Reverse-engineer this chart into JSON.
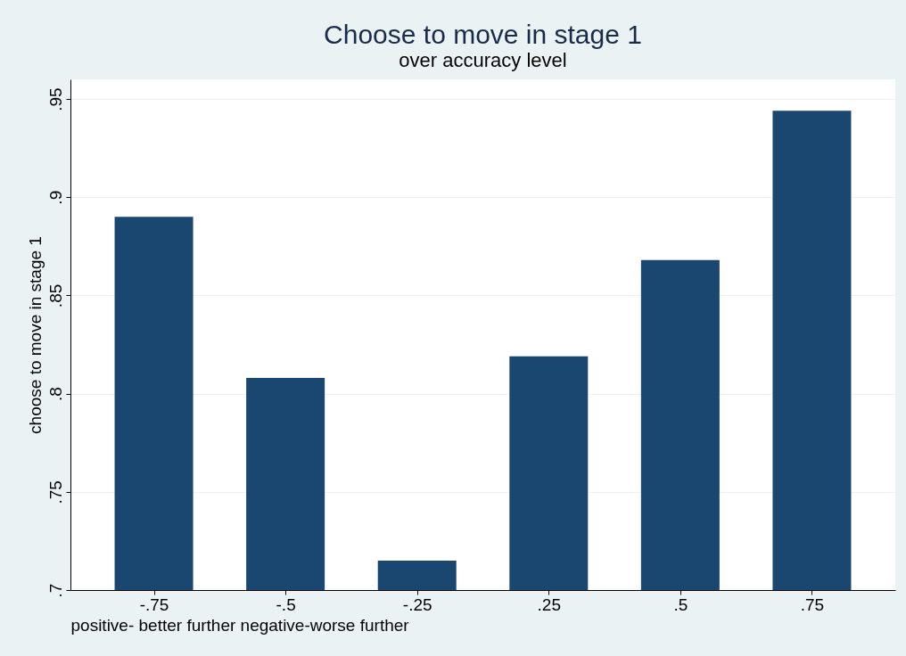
{
  "chart_data": {
    "type": "bar",
    "title": "Choose to move in stage 1",
    "subtitle": "over accuracy level",
    "xlabel": "positive- better further negative-worse further",
    "ylabel": "choose to move in stage 1",
    "categories": [
      "-.75",
      "-.5",
      "-.25",
      ".25",
      ".5",
      ".75"
    ],
    "values": [
      0.89,
      0.808,
      0.715,
      0.819,
      0.868,
      0.944
    ],
    "color": "#1a476f",
    "ylim": [
      0.7,
      0.96
    ],
    "yticks": [
      {
        "value": 0.7,
        "label": ".7"
      },
      {
        "value": 0.75,
        "label": ".75"
      },
      {
        "value": 0.8,
        "label": ".8"
      },
      {
        "value": 0.85,
        "label": ".85"
      },
      {
        "value": 0.9,
        "label": ".9"
      },
      {
        "value": 0.95,
        "label": ".95"
      }
    ],
    "grid": "y"
  }
}
